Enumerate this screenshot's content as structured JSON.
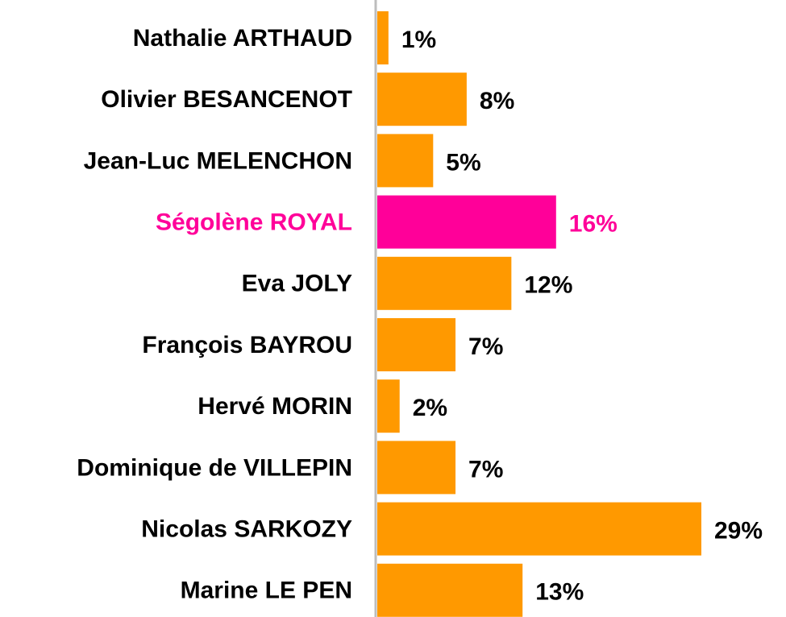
{
  "chart_data": {
    "type": "barh",
    "categories": [
      "Nathalie ARTHAUD",
      "Olivier BESANCENOT",
      "Jean-Luc MELENCHON",
      "Ségolène ROYAL",
      "Eva JOLY",
      "François BAYROU",
      "Hervé MORIN",
      "Dominique de VILLEPIN",
      "Nicolas SARKOZY",
      "Marine LE PEN"
    ],
    "values": [
      1,
      8,
      5,
      16,
      12,
      7,
      2,
      7,
      29,
      13
    ],
    "value_labels": [
      "1%",
      "8%",
      "5%",
      "16%",
      "12%",
      "7%",
      "2%",
      "7%",
      "29%",
      "13%"
    ],
    "color": "#FF9900",
    "colors": [
      "#FF9900",
      "#FF9900",
      "#FF9900",
      "#FF0099",
      "#FF9900",
      "#FF9900",
      "#FF9900",
      "#FF9900",
      "#FF9900",
      "#FF9900"
    ]
  }
}
